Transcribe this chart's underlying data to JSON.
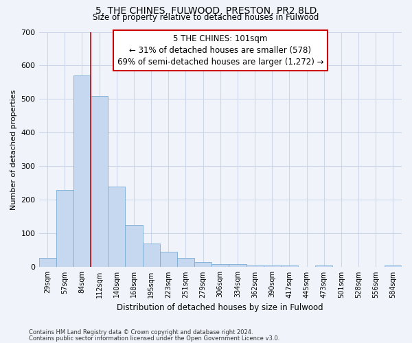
{
  "title1": "5, THE CHINES, FULWOOD, PRESTON, PR2 8LD",
  "title2": "Size of property relative to detached houses in Fulwood",
  "xlabel": "Distribution of detached houses by size in Fulwood",
  "ylabel": "Number of detached properties",
  "categories": [
    "29sqm",
    "57sqm",
    "84sqm",
    "112sqm",
    "140sqm",
    "168sqm",
    "195sqm",
    "223sqm",
    "251sqm",
    "279sqm",
    "306sqm",
    "334sqm",
    "362sqm",
    "390sqm",
    "417sqm",
    "445sqm",
    "473sqm",
    "501sqm",
    "528sqm",
    "556sqm",
    "584sqm"
  ],
  "values": [
    27,
    230,
    570,
    510,
    240,
    125,
    70,
    45,
    27,
    15,
    10,
    10,
    5,
    5,
    5,
    0,
    5,
    0,
    0,
    0,
    5
  ],
  "bar_color": "#c5d8ef",
  "bar_edge_color": "#7aadd4",
  "grid_color": "#cdd6e8",
  "background_color": "#f0f4fa",
  "annotation_box_text": "5 THE CHINES: 101sqm\n← 31% of detached houses are smaller (578)\n69% of semi-detached houses are larger (1,272) →",
  "annotation_box_color": "#ffffff",
  "annotation_box_edge": "#cc0000",
  "vline_color": "#cc0000",
  "vline_x_index": 3,
  "footnote1": "Contains HM Land Registry data © Crown copyright and database right 2024.",
  "footnote2": "Contains public sector information licensed under the Open Government Licence v3.0.",
  "ylim": [
    0,
    700
  ],
  "yticks": [
    0,
    100,
    200,
    300,
    400,
    500,
    600,
    700
  ]
}
